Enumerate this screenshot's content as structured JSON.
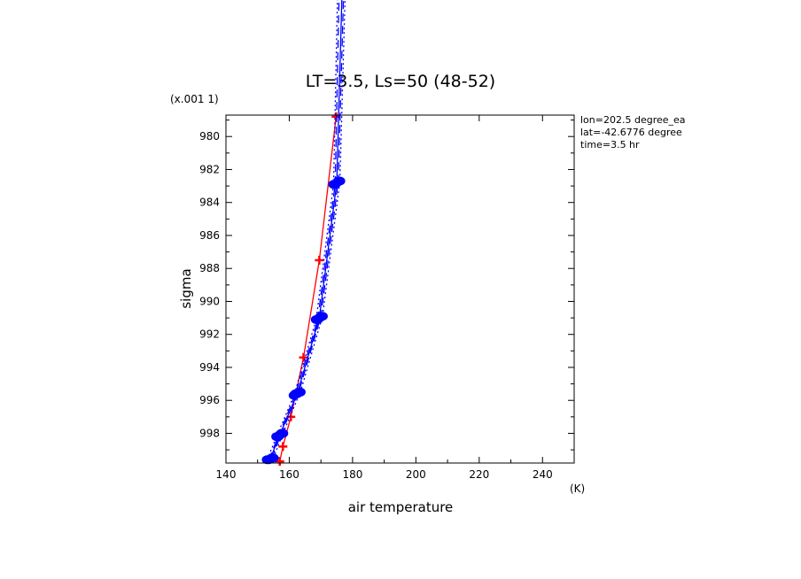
{
  "chart_data": {
    "type": "line",
    "title": "LT=3.5, Ls=50 (48-52)",
    "xlabel": "air temperature",
    "xunit": "(K)",
    "ylabel": "sigma",
    "yscale_label": "(x.001 1)",
    "xlim": [
      140,
      250
    ],
    "ylim": [
      999.8,
      978.7
    ],
    "x_ticks": [
      140,
      160,
      180,
      200,
      220,
      240
    ],
    "y_ticks": [
      980,
      982,
      984,
      986,
      988,
      990,
      992,
      994,
      996,
      998
    ],
    "x_tick_labels": [
      "140",
      "160",
      "180",
      "200",
      "220",
      "240"
    ],
    "y_tick_labels": [
      "980",
      "982",
      "984",
      "986",
      "988",
      "990",
      "992",
      "994",
      "996",
      "998"
    ],
    "info": [
      "lon=202.5 degree_ea",
      "lat=-42.6776 degree",
      "time=3.5 hr"
    ],
    "grid": false,
    "colors": {
      "red": "#ff0000",
      "blue": "#0000ff"
    },
    "series": [
      {
        "color": "#ff0000",
        "style": "solid",
        "marker": "plus",
        "points": [
          [
            157,
            999.7
          ],
          [
            158,
            998.8
          ],
          [
            160.5,
            997.0
          ],
          [
            164.5,
            993.4
          ],
          [
            169.5,
            987.5
          ],
          [
            174.8,
            978.8
          ]
        ]
      },
      {
        "color": "#0000ff",
        "style": "solid",
        "marker": "dot",
        "points": [
          [
            154,
            999.55
          ],
          [
            157,
            998.1
          ],
          [
            162.5,
            995.6
          ],
          [
            169.5,
            991.0
          ],
          [
            175,
            982.8
          ],
          [
            177,
            969
          ]
        ]
      },
      {
        "color": "#0000ff",
        "style": "dashed",
        "marker": "dot",
        "points": [
          [
            153.5,
            999.6
          ],
          [
            156.5,
            998.2
          ],
          [
            162,
            995.6
          ],
          [
            169,
            991.1
          ],
          [
            174.5,
            982.9
          ],
          [
            176,
            969
          ]
        ]
      },
      {
        "color": "#0000ff",
        "style": "dashed",
        "marker": "dot",
        "points": [
          [
            154.5,
            999.5
          ],
          [
            157.5,
            998.0
          ],
          [
            163,
            995.5
          ],
          [
            170,
            990.9
          ],
          [
            175.5,
            982.7
          ],
          [
            177.5,
            969
          ]
        ]
      },
      {
        "color": "#0000ff",
        "style": "dotted",
        "marker": "dot",
        "points": [
          [
            153,
            999.6
          ],
          [
            156,
            998.2
          ],
          [
            161.5,
            995.7
          ],
          [
            168.5,
            991.1
          ],
          [
            174,
            982.9
          ],
          [
            175.5,
            969
          ]
        ]
      },
      {
        "color": "#0000ff",
        "style": "dotted",
        "marker": "dot",
        "points": [
          [
            155,
            999.5
          ],
          [
            158,
            998.0
          ],
          [
            163.5,
            995.5
          ],
          [
            170.5,
            990.9
          ],
          [
            176,
            982.7
          ],
          [
            178,
            969
          ]
        ]
      }
    ]
  }
}
